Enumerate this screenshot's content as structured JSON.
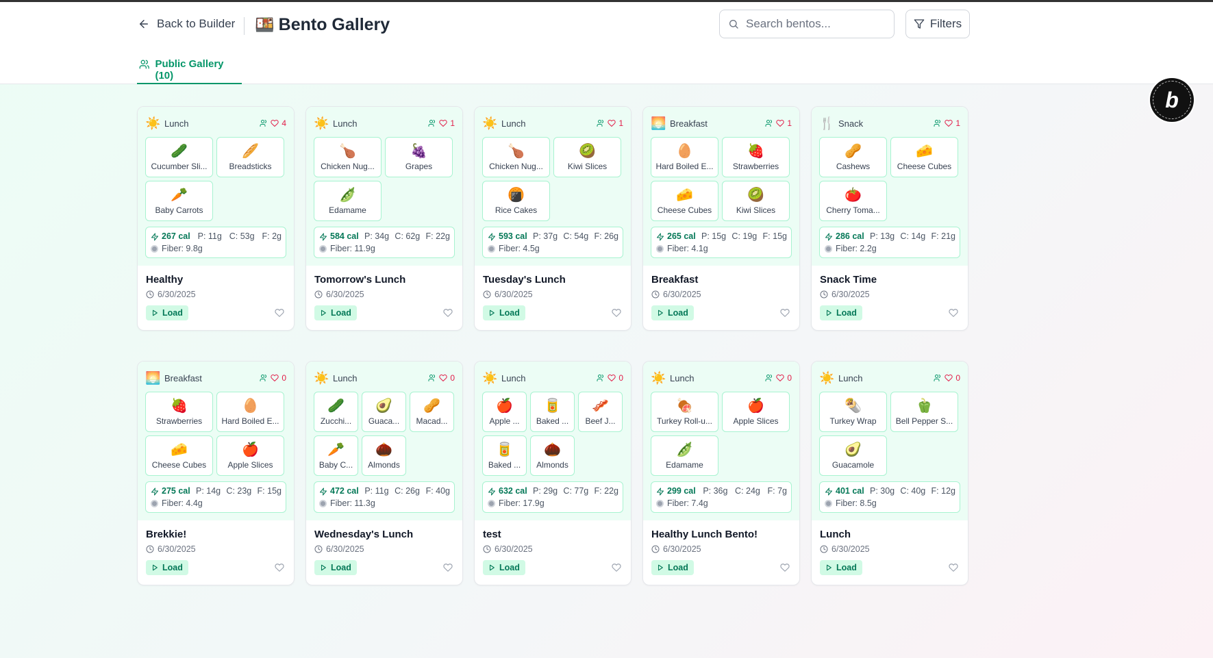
{
  "header": {
    "back_label": "Back to Builder",
    "title_emoji": "🍱",
    "title": "Bento Gallery",
    "search_placeholder": "Search bentos...",
    "filters_label": "Filters"
  },
  "tabs": [
    {
      "label": "Public Gallery (10)",
      "active": true
    }
  ],
  "badge": {
    "glyph": "b"
  },
  "colors": {
    "accent": "#059669",
    "heart": "#e11d48",
    "card_top_bg": "#ecfdf5",
    "item_border": "#a7f3d0"
  },
  "cards": [
    {
      "meal_icon": "☀️",
      "meal": "Lunch",
      "likes": "4",
      "items": [
        {
          "emoji": "🥒",
          "name": "Cucumber Sli..."
        },
        {
          "emoji": "🥖",
          "name": "Breadsticks"
        },
        {
          "emoji": "🥕",
          "name": "Baby Carrots"
        }
      ],
      "calories": "267 cal",
      "protein": "P: 11g",
      "carbs": "C: 53g",
      "fat": "F: 2g",
      "fiber": "Fiber: 9.8g",
      "name": "Healthy",
      "date": "6/30/2025",
      "load_label": "Load"
    },
    {
      "meal_icon": "☀️",
      "meal": "Lunch",
      "likes": "1",
      "items": [
        {
          "emoji": "🍗",
          "name": "Chicken Nug..."
        },
        {
          "emoji": "🍇",
          "name": "Grapes"
        },
        {
          "emoji": "🫛",
          "name": "Edamame"
        }
      ],
      "calories": "584 cal",
      "protein": "P: 34g",
      "carbs": "C: 62g",
      "fat": "F: 22g",
      "fiber": "Fiber: 11.9g",
      "name": "Tomorrow's Lunch",
      "date": "6/30/2025",
      "load_label": "Load"
    },
    {
      "meal_icon": "☀️",
      "meal": "Lunch",
      "likes": "1",
      "items": [
        {
          "emoji": "🍗",
          "name": "Chicken Nug..."
        },
        {
          "emoji": "🥝",
          "name": "Kiwi Slices"
        },
        {
          "emoji": "🍘",
          "name": "Rice Cakes"
        }
      ],
      "calories": "593 cal",
      "protein": "P: 37g",
      "carbs": "C: 54g",
      "fat": "F: 26g",
      "fiber": "Fiber: 4.5g",
      "name": "Tuesday's Lunch",
      "date": "6/30/2025",
      "load_label": "Load"
    },
    {
      "meal_icon": "🌅",
      "meal": "Breakfast",
      "likes": "1",
      "items": [
        {
          "emoji": "🥚",
          "name": "Hard Boiled E..."
        },
        {
          "emoji": "🍓",
          "name": "Strawberries"
        },
        {
          "emoji": "🧀",
          "name": "Cheese Cubes"
        },
        {
          "emoji": "🥝",
          "name": "Kiwi Slices"
        }
      ],
      "calories": "265 cal",
      "protein": "P: 15g",
      "carbs": "C: 19g",
      "fat": "F: 15g",
      "fiber": "Fiber: 4.1g",
      "name": "Breakfast",
      "date": "6/30/2025",
      "load_label": "Load"
    },
    {
      "meal_icon": "🍴",
      "meal": "Snack",
      "likes": "1",
      "items": [
        {
          "emoji": "🥜",
          "name": "Cashews"
        },
        {
          "emoji": "🧀",
          "name": "Cheese Cubes"
        },
        {
          "emoji": "🍅",
          "name": "Cherry Toma..."
        }
      ],
      "calories": "286 cal",
      "protein": "P: 13g",
      "carbs": "C: 14g",
      "fat": "F: 21g",
      "fiber": "Fiber: 2.2g",
      "name": "Snack Time",
      "date": "6/30/2025",
      "load_label": "Load"
    },
    {
      "meal_icon": "🌅",
      "meal": "Breakfast",
      "likes": "0",
      "items": [
        {
          "emoji": "🍓",
          "name": "Strawberries"
        },
        {
          "emoji": "🥚",
          "name": "Hard Boiled E..."
        },
        {
          "emoji": "🧀",
          "name": "Cheese Cubes"
        },
        {
          "emoji": "🍎",
          "name": "Apple Slices"
        }
      ],
      "calories": "275 cal",
      "protein": "P: 14g",
      "carbs": "C: 23g",
      "fat": "F: 15g",
      "fiber": "Fiber: 4.4g",
      "name": "Brekkie!",
      "date": "6/30/2025",
      "load_label": "Load"
    },
    {
      "meal_icon": "☀️",
      "meal": "Lunch",
      "likes": "0",
      "items": [
        {
          "emoji": "🥒",
          "name": "Zucchi..."
        },
        {
          "emoji": "🥑",
          "name": "Guaca..."
        },
        {
          "emoji": "🥜",
          "name": "Macad..."
        },
        {
          "emoji": "🥕",
          "name": "Baby C..."
        },
        {
          "emoji": "🌰",
          "name": "Almonds"
        }
      ],
      "calories": "472 cal",
      "protein": "P: 11g",
      "carbs": "C: 26g",
      "fat": "F: 40g",
      "fiber": "Fiber: 11.3g",
      "name": "Wednesday's Lunch",
      "date": "6/30/2025",
      "load_label": "Load"
    },
    {
      "meal_icon": "☀️",
      "meal": "Lunch",
      "likes": "0",
      "items": [
        {
          "emoji": "🍎",
          "name": "Apple ..."
        },
        {
          "emoji": "🥫",
          "name": "Baked ..."
        },
        {
          "emoji": "🥓",
          "name": "Beef J..."
        },
        {
          "emoji": "🥫",
          "name": "Baked ..."
        },
        {
          "emoji": "🌰",
          "name": "Almonds"
        }
      ],
      "calories": "632 cal",
      "protein": "P: 29g",
      "carbs": "C: 77g",
      "fat": "F: 22g",
      "fiber": "Fiber: 17.9g",
      "name": "test",
      "date": "6/30/2025",
      "load_label": "Load"
    },
    {
      "meal_icon": "☀️",
      "meal": "Lunch",
      "likes": "0",
      "items": [
        {
          "emoji": "🍖",
          "name": "Turkey Roll-u..."
        },
        {
          "emoji": "🍎",
          "name": "Apple Slices"
        },
        {
          "emoji": "🫛",
          "name": "Edamame"
        }
      ],
      "calories": "299 cal",
      "protein": "P: 36g",
      "carbs": "C: 24g",
      "fat": "F: 7g",
      "fiber": "Fiber: 7.4g",
      "name": "Healthy Lunch Bento!",
      "date": "6/30/2025",
      "load_label": "Load"
    },
    {
      "meal_icon": "☀️",
      "meal": "Lunch",
      "likes": "0",
      "items": [
        {
          "emoji": "🌯",
          "name": "Turkey Wrap"
        },
        {
          "emoji": "🫑",
          "name": "Bell Pepper S..."
        },
        {
          "emoji": "🥑",
          "name": "Guacamole"
        }
      ],
      "calories": "401 cal",
      "protein": "P: 30g",
      "carbs": "C: 40g",
      "fat": "F: 12g",
      "fiber": "Fiber: 8.5g",
      "name": "Lunch",
      "date": "6/30/2025",
      "load_label": "Load"
    }
  ]
}
